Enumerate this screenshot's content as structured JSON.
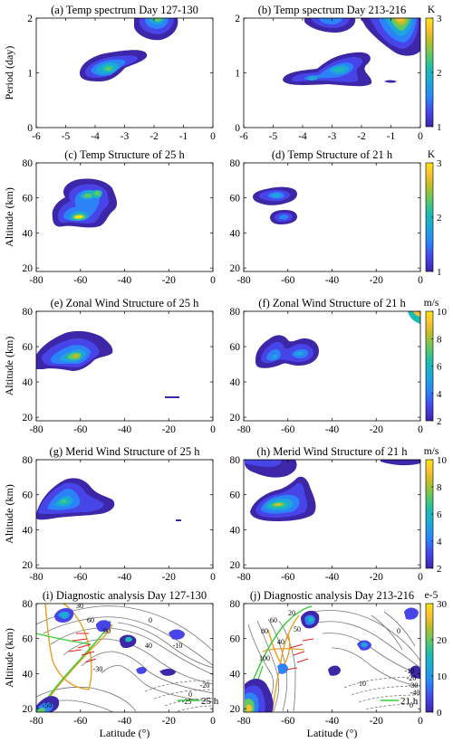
{
  "figure": {
    "colorbars": [
      {
        "unit": "K",
        "ticks": [
          "1",
          "2",
          "3"
        ],
        "range": [
          1,
          3
        ]
      },
      {
        "unit": "K",
        "ticks": [
          "1",
          "2",
          "3"
        ],
        "range": [
          1,
          3
        ]
      },
      {
        "unit": "m/s",
        "ticks": [
          "2",
          "4",
          "6",
          "8",
          "10"
        ],
        "range": [
          2,
          10
        ]
      },
      {
        "unit": "m/s",
        "ticks": [
          "2",
          "4",
          "6",
          "8",
          "10"
        ],
        "range": [
          2,
          10
        ]
      },
      {
        "unit": "e-5",
        "ticks": [
          "0",
          "10",
          "20",
          "30"
        ],
        "range": [
          0,
          30
        ]
      }
    ],
    "colormap": [
      "#3e26a8",
      "#4744e8",
      "#2c83f8",
      "#1ea6da",
      "#1cbcb5",
      "#5ec963",
      "#bfbc2a",
      "#fdc12f",
      "#f9e519"
    ]
  },
  "chart_data": [
    {
      "type": "heatmap",
      "title": "(a) Temp spectrum Day 127-130",
      "xlim": [
        -6,
        0
      ],
      "ylim": [
        0,
        2
      ],
      "xticks": [
        "-6",
        "-5",
        "-4",
        "-3",
        "-2",
        "-1",
        "0"
      ],
      "yticks": [
        "0",
        "1",
        "2"
      ],
      "xlabel": "",
      "ylabel": "Period (day)",
      "peaks": [
        {
          "x": -4,
          "y": 1.05,
          "value": 2.6
        },
        {
          "x": -1.9,
          "y": 1.95,
          "value": 2.4
        }
      ]
    },
    {
      "type": "heatmap",
      "title": "(b) Temp spectrum Day 213-216",
      "xlim": [
        -6,
        0
      ],
      "ylim": [
        0,
        2
      ],
      "xticks": [
        "-6",
        "-5",
        "-4",
        "-3",
        "-2",
        "-1",
        "0"
      ],
      "yticks": [
        "0",
        "1",
        "2"
      ],
      "xlabel": "",
      "ylabel": "",
      "peaks": [
        {
          "x": -3,
          "y": 1.1,
          "value": 1.9
        },
        {
          "x": -1,
          "y": 1.9,
          "value": 2.9
        },
        {
          "x": -2.6,
          "y": 1.95,
          "value": 1.5
        }
      ]
    },
    {
      "type": "heatmap",
      "title": "(c) Temp Structure of 25 h",
      "xlim": [
        -80,
        0
      ],
      "ylim": [
        18,
        80
      ],
      "xticks": [
        "-80",
        "-60",
        "-40",
        "-20",
        "0"
      ],
      "yticks": [
        "20",
        "40",
        "60",
        "80"
      ],
      "xlabel": "",
      "ylabel": "Altitude (km)",
      "peaks": [
        {
          "x": -61,
          "y": 49,
          "value": 2.9
        },
        {
          "x": -57,
          "y": 61,
          "value": 2.4
        },
        {
          "x": -66,
          "y": 67,
          "value": 1.9
        }
      ]
    },
    {
      "type": "heatmap",
      "title": "(d) Temp Structure of 21 h",
      "xlim": [
        -80,
        0
      ],
      "ylim": [
        18,
        80
      ],
      "xticks": [
        "-80",
        "-60",
        "-40",
        "-20",
        "0"
      ],
      "yticks": [
        "20",
        "40",
        "60",
        "80"
      ],
      "xlabel": "",
      "ylabel": "",
      "peaks": [
        {
          "x": -60,
          "y": 62,
          "value": 2.0
        },
        {
          "x": -59,
          "y": 48,
          "value": 1.7
        }
      ]
    },
    {
      "type": "heatmap",
      "title": "(e) Zonal Wind Structure of 25 h",
      "xlim": [
        -80,
        0
      ],
      "ylim": [
        18,
        80
      ],
      "xticks": [
        "-80",
        "-60",
        "-40",
        "-20",
        "0"
      ],
      "yticks": [
        "20",
        "40",
        "60",
        "80"
      ],
      "xlabel": "",
      "ylabel": "Altitude (km)",
      "peaks": [
        {
          "x": -58,
          "y": 55,
          "value": 8.6
        }
      ]
    },
    {
      "type": "heatmap",
      "title": "(f) Zonal Wind Structure of 21 h",
      "xlim": [
        -80,
        0
      ],
      "ylim": [
        18,
        80
      ],
      "xticks": [
        "-80",
        "-60",
        "-40",
        "-20",
        "0"
      ],
      "yticks": [
        "20",
        "40",
        "60",
        "80"
      ],
      "xlabel": "",
      "ylabel": "",
      "peaks": [
        {
          "x": -69,
          "y": 56,
          "value": 5.5
        },
        {
          "x": -56,
          "y": 55,
          "value": 5.0
        },
        {
          "x": 0,
          "y": 78,
          "value": 9.5
        }
      ]
    },
    {
      "type": "heatmap",
      "title": "(g) Merid Wind Structure of 25 h",
      "xlim": [
        -80,
        0
      ],
      "ylim": [
        18,
        80
      ],
      "xticks": [
        "-80",
        "-60",
        "-40",
        "-20",
        "0"
      ],
      "yticks": [
        "20",
        "40",
        "60",
        "80"
      ],
      "xlabel": "",
      "ylabel": "Altitude (km)",
      "peaks": [
        {
          "x": -66,
          "y": 57,
          "value": 6.5
        }
      ]
    },
    {
      "type": "heatmap",
      "title": "(h) Merid Wind Structure of 21 h",
      "xlim": [
        -80,
        0
      ],
      "ylim": [
        18,
        80
      ],
      "xticks": [
        "-80",
        "-60",
        "-40",
        "-20",
        "0"
      ],
      "yticks": [
        "20",
        "40",
        "60",
        "80"
      ],
      "xlabel": "",
      "ylabel": "",
      "peaks": [
        {
          "x": -60,
          "y": 56,
          "value": 9.6
        },
        {
          "x": -75,
          "y": 76,
          "value": 3.5
        },
        {
          "x": -14,
          "y": 79,
          "value": 3.0
        }
      ]
    },
    {
      "type": "heatmap",
      "title": "(i) Diagnostic analysis Day 127-130",
      "xlim": [
        -80,
        0
      ],
      "ylim": [
        18,
        80
      ],
      "xticks": [
        "-80",
        "-60",
        "-40",
        "-20",
        "0"
      ],
      "yticks": [
        "20",
        "40",
        "60",
        "80"
      ],
      "xlabel": "Latitude (°)",
      "ylabel": "Altitude (km)",
      "contour_labels": [
        "30",
        "60",
        "90",
        "0",
        "40",
        "-10",
        "-30",
        "-50",
        "0",
        "-20",
        "-25"
      ],
      "line_label": "25 h"
    },
    {
      "type": "heatmap",
      "title": "(j) Diagnostic analysis Day 213-216",
      "xlim": [
        -80,
        0
      ],
      "ylim": [
        18,
        80
      ],
      "xticks": [
        "-80",
        "-60",
        "-40",
        "-20",
        "0"
      ],
      "yticks": [
        "20",
        "40",
        "60",
        "80"
      ],
      "xlabel": "Latitude (°)",
      "ylabel": "",
      "contour_labels": [
        "80",
        "60",
        "40",
        "20",
        "50",
        "100",
        "10",
        "0",
        "-10",
        "-20",
        "-30",
        "-40",
        "0"
      ],
      "line_label": "21 h"
    }
  ]
}
